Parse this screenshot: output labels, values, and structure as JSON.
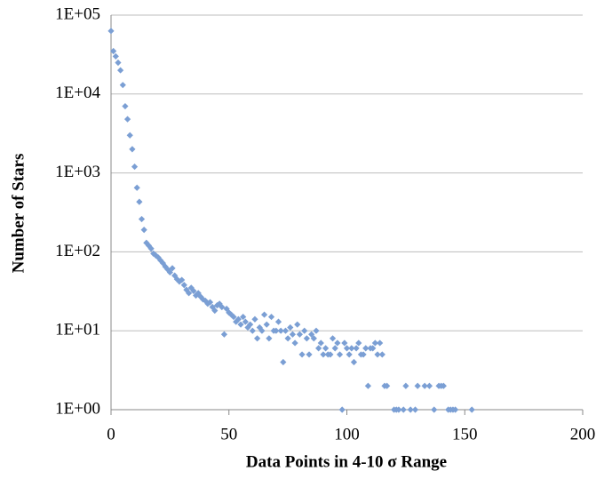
{
  "chart_data": {
    "type": "scatter",
    "xlabel": "Data Points in 4-10 σ Range",
    "ylabel": "Number of Stars",
    "x": [
      0,
      1,
      2,
      3,
      4,
      5,
      6,
      7,
      8,
      9,
      10,
      11,
      12,
      13,
      14,
      15,
      16,
      17,
      18,
      19,
      20,
      21,
      22,
      23,
      24,
      25,
      26,
      27,
      28,
      29,
      30,
      31,
      32,
      33,
      34,
      35,
      36,
      37,
      38,
      39,
      40,
      41,
      42,
      43,
      44,
      45,
      46,
      47,
      48,
      49,
      50,
      51,
      52,
      53,
      54,
      55,
      56,
      57,
      58,
      59,
      60,
      61,
      62,
      63,
      64,
      65,
      66,
      67,
      68,
      69,
      70,
      71,
      72,
      73,
      74,
      75,
      76,
      77,
      78,
      79,
      80,
      81,
      82,
      83,
      84,
      85,
      86,
      87,
      88,
      89,
      90,
      91,
      92,
      93,
      94,
      95,
      96,
      97,
      98,
      99,
      100,
      101,
      102,
      103,
      104,
      105,
      106,
      107,
      108,
      109,
      110,
      111,
      112,
      113,
      114,
      115,
      116,
      117,
      120,
      121,
      122,
      124,
      125,
      127,
      129,
      130,
      133,
      135,
      137,
      139,
      140,
      141,
      143,
      144,
      145,
      146,
      153
    ],
    "y": [
      63000,
      35000,
      30000,
      25000,
      20000,
      13000,
      7000,
      4800,
      3000,
      2000,
      1200,
      650,
      430,
      260,
      190,
      130,
      120,
      110,
      95,
      90,
      85,
      78,
      72,
      65,
      60,
      55,
      62,
      50,
      45,
      42,
      44,
      38,
      33,
      30,
      35,
      32,
      28,
      30,
      27,
      25,
      24,
      22,
      23,
      20,
      18,
      21,
      22,
      20,
      9,
      19,
      17,
      16,
      15,
      13,
      14,
      12,
      15,
      13,
      11,
      12,
      10,
      14,
      8,
      11,
      10,
      16,
      12,
      8,
      15,
      10,
      10,
      13,
      10,
      4,
      10,
      8,
      11,
      9,
      7,
      12,
      9,
      5,
      10,
      8,
      5,
      9,
      8,
      10,
      6,
      7,
      5,
      6,
      5,
      5,
      8,
      6,
      7,
      5,
      1,
      7,
      6,
      5,
      6,
      4,
      6,
      7,
      5,
      5,
      6,
      2,
      6,
      6,
      7,
      5,
      7,
      5,
      2,
      2,
      1,
      1,
      1,
      1,
      2,
      1,
      1,
      2,
      2,
      2,
      1,
      2,
      2,
      2,
      1,
      1,
      1,
      1,
      1
    ],
    "color": "#7b9fd4",
    "xlim": [
      0,
      200
    ],
    "xticks": [
      0,
      50,
      100,
      150,
      200
    ],
    "ylim": [
      1,
      100000
    ],
    "log_y": true,
    "yticks": [
      {
        "value": 1,
        "label": "1E+00"
      },
      {
        "value": 10,
        "label": "1E+01"
      },
      {
        "value": 100,
        "label": "1E+02"
      },
      {
        "value": 1000,
        "label": "1E+03"
      },
      {
        "value": 10000,
        "label": "1E+04"
      },
      {
        "value": 100000,
        "label": "1E+05"
      }
    ],
    "grid": true
  }
}
